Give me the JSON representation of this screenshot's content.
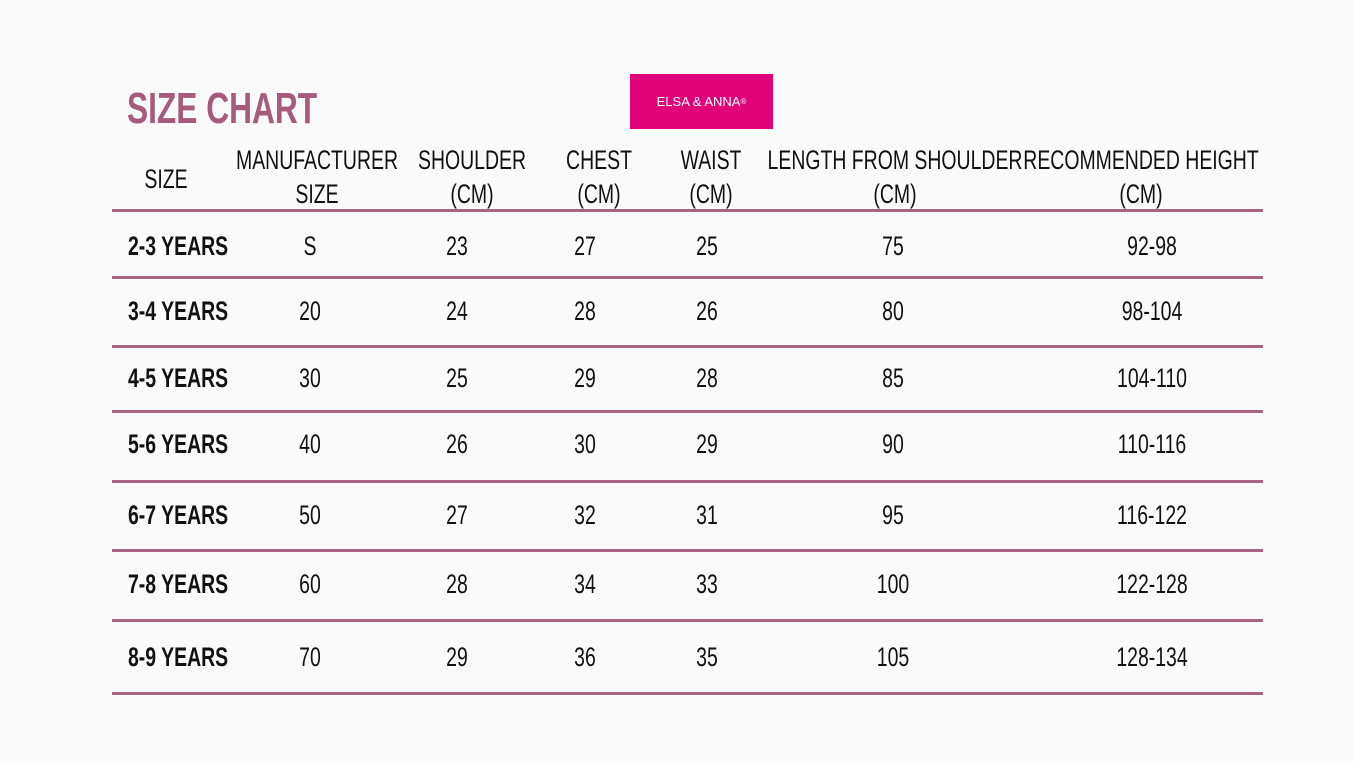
{
  "title": "SIZE CHART",
  "brand": {
    "name": "ELSA & ANNA",
    "mark": "®",
    "color": "#e0037a"
  },
  "accent_color": "#a9627f",
  "columns": [
    [
      "SIZE"
    ],
    [
      "MANUFACTURER",
      "SIZE"
    ],
    [
      "SHOULDER",
      "(CM)"
    ],
    [
      "CHEST",
      "(CM)"
    ],
    [
      "WAIST",
      "(CM)"
    ],
    [
      "LENGTH FROM SHOULDER",
      "(CM)"
    ],
    [
      "RECOMMENDED HEIGHT",
      "(CM)"
    ]
  ],
  "rows": [
    [
      "2-3 YEARS",
      "S",
      "23",
      "27",
      "25",
      "75",
      "92-98"
    ],
    [
      "3-4 YEARS",
      "20",
      "24",
      "28",
      "26",
      "80",
      "98-104"
    ],
    [
      "4-5 YEARS",
      "30",
      "25",
      "29",
      "28",
      "85",
      "104-110"
    ],
    [
      "5-6 YEARS",
      "40",
      "26",
      "30",
      "29",
      "90",
      "110-116"
    ],
    [
      "6-7 YEARS",
      "50",
      "27",
      "32",
      "31",
      "95",
      "116-122"
    ],
    [
      "7-8 YEARS",
      "60",
      "28",
      "34",
      "33",
      "100",
      "122-128"
    ],
    [
      "8-9 YEARS",
      "70",
      "29",
      "36",
      "35",
      "105",
      "128-134"
    ]
  ]
}
